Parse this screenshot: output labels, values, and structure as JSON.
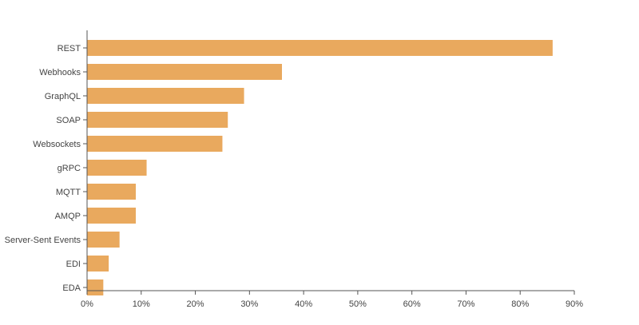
{
  "chart_data": {
    "type": "bar",
    "orientation": "horizontal",
    "categories": [
      "REST",
      "Webhooks",
      "GraphQL",
      "SOAP",
      "Websockets",
      "gRPC",
      "MQTT",
      "AMQP",
      "Server-Sent Events",
      "EDI",
      "EDA"
    ],
    "values": [
      86,
      36,
      29,
      26,
      25,
      11,
      9,
      9,
      6,
      4,
      3
    ],
    "value_unit": "%",
    "xlim": [
      0,
      90
    ],
    "xticks": [
      "0%",
      "10%",
      "20%",
      "30%",
      "40%",
      "50%",
      "60%",
      "70%",
      "80%",
      "90%"
    ],
    "title": "",
    "xlabel": "",
    "ylabel": "",
    "grid": false,
    "legend": "none",
    "bar_color": "#E9A95E",
    "axis_color": "#555555",
    "label_color": "#444444"
  }
}
